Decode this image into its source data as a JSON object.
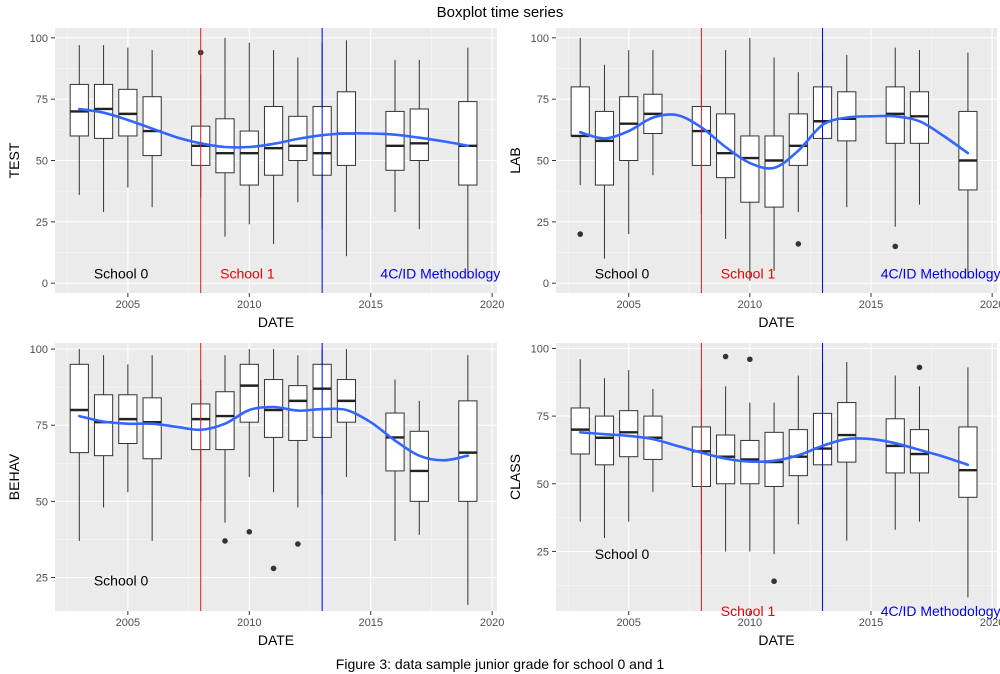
{
  "title": "Boxplot time series",
  "caption": "Figure 3: data sample junior grade for school 0 and 1",
  "chart_data": [
    {
      "type": "box",
      "panel": "TEST",
      "xlabel": "DATE",
      "ylabel": "TEST",
      "xlim": [
        2002,
        2020.2
      ],
      "ylim": [
        -4,
        104
      ],
      "xticks": [
        2005,
        2010,
        2015,
        2020
      ],
      "yticks": [
        0,
        25,
        50,
        75,
        100
      ],
      "vlines": [
        {
          "x": 2008,
          "color": "#e41a1c"
        },
        {
          "x": 2013,
          "color": "#0000dd"
        }
      ],
      "annotations": [
        {
          "text": "School 0",
          "x": 2003.6,
          "y": 4,
          "color": "#000000"
        },
        {
          "text": "School 1",
          "x": 2008.8,
          "y": 4,
          "color": "#ee0000"
        },
        {
          "text": "4C/ID Methodology",
          "x": 2015.4,
          "y": 4,
          "color": "#0000ee"
        }
      ],
      "boxes": [
        {
          "x": 2003,
          "min": 36,
          "q1": 60,
          "median": 70,
          "q3": 81,
          "max": 97
        },
        {
          "x": 2004,
          "min": 29,
          "q1": 59,
          "median": 71,
          "q3": 81,
          "max": 97
        },
        {
          "x": 2005,
          "min": 39,
          "q1": 60,
          "median": 69,
          "q3": 79,
          "max": 96
        },
        {
          "x": 2006,
          "min": 31,
          "q1": 52,
          "median": 62,
          "q3": 76,
          "max": 95
        },
        {
          "x": 2008,
          "min": 35,
          "q1": 48,
          "median": 56,
          "q3": 64,
          "max": 85,
          "outliers": [
            94
          ]
        },
        {
          "x": 2009,
          "min": 19,
          "q1": 45,
          "median": 53,
          "q3": 67,
          "max": 100
        },
        {
          "x": 2010,
          "min": 24,
          "q1": 40,
          "median": 53,
          "q3": 62,
          "max": 98
        },
        {
          "x": 2011,
          "min": 16,
          "q1": 44,
          "median": 55,
          "q3": 72,
          "max": 95
        },
        {
          "x": 2012,
          "min": 33,
          "q1": 50,
          "median": 56,
          "q3": 68,
          "max": 92
        },
        {
          "x": 2013,
          "min": 22,
          "q1": 44,
          "median": 53,
          "q3": 72,
          "max": 98
        },
        {
          "x": 2014,
          "min": 11,
          "q1": 48,
          "median": 61,
          "q3": 78,
          "max": 99
        },
        {
          "x": 2016,
          "min": 29,
          "q1": 46,
          "median": 56,
          "q3": 70,
          "max": 91
        },
        {
          "x": 2017,
          "min": 22,
          "q1": 50,
          "median": 57,
          "q3": 71,
          "max": 91
        },
        {
          "x": 2019,
          "min": 2,
          "q1": 40,
          "median": 56,
          "q3": 74,
          "max": 96
        }
      ],
      "smooth": {
        "color": "#3366ff",
        "x": [
          2003,
          2004,
          2005,
          2006,
          2007,
          2008,
          2009,
          2010,
          2011,
          2012,
          2013,
          2014,
          2015,
          2016,
          2017,
          2018,
          2019
        ],
        "y": [
          71,
          69.5,
          66.5,
          63,
          59.5,
          57,
          55.5,
          55.5,
          56.8,
          58.8,
          60.3,
          61,
          61,
          60.5,
          59.3,
          57.8,
          56
        ]
      }
    },
    {
      "type": "box",
      "panel": "LAB",
      "xlabel": "DATE",
      "ylabel": "LAB",
      "xlim": [
        2002,
        2020.2
      ],
      "ylim": [
        -4,
        104
      ],
      "xticks": [
        2005,
        2010,
        2015,
        2020
      ],
      "yticks": [
        0,
        25,
        50,
        75,
        100
      ],
      "vlines": [
        {
          "x": 2008,
          "color": "#e41a1c"
        },
        {
          "x": 2013,
          "color": "#0000dd"
        }
      ],
      "annotations": [
        {
          "text": "School 0",
          "x": 2003.6,
          "y": 4,
          "color": "#000000"
        },
        {
          "text": "School 1",
          "x": 2008.8,
          "y": 4,
          "color": "#ee0000"
        },
        {
          "text": "4C/ID Methodology",
          "x": 2015.4,
          "y": 4,
          "color": "#0000ee"
        }
      ],
      "boxes": [
        {
          "x": 2003,
          "min": 40,
          "q1": 60,
          "median": 60,
          "q3": 80,
          "max": 100,
          "outliers": [
            20
          ]
        },
        {
          "x": 2004,
          "min": 10,
          "q1": 40,
          "median": 58,
          "q3": 70,
          "max": 89
        },
        {
          "x": 2005,
          "min": 20,
          "q1": 50,
          "median": 65,
          "q3": 76,
          "max": 95
        },
        {
          "x": 2006,
          "min": 44,
          "q1": 61,
          "median": 69,
          "q3": 77,
          "max": 95
        },
        {
          "x": 2008,
          "min": 28,
          "q1": 48,
          "median": 62,
          "q3": 72,
          "max": 85
        },
        {
          "x": 2009,
          "min": 18,
          "q1": 43,
          "median": 53,
          "q3": 69,
          "max": 95
        },
        {
          "x": 2010,
          "min": 1,
          "q1": 33,
          "median": 51,
          "q3": 60,
          "max": 100
        },
        {
          "x": 2011,
          "min": 5,
          "q1": 31,
          "median": 50,
          "q3": 60,
          "max": 92
        },
        {
          "x": 2012,
          "min": 29,
          "q1": 48,
          "median": 56,
          "q3": 69,
          "max": 86,
          "outliers": [
            16
          ]
        },
        {
          "x": 2013,
          "min": 35,
          "q1": 59,
          "median": 66,
          "q3": 80,
          "max": 95
        },
        {
          "x": 2014,
          "min": 31,
          "q1": 58,
          "median": 67,
          "q3": 78,
          "max": 93
        },
        {
          "x": 2016,
          "min": 23,
          "q1": 57,
          "median": 69,
          "q3": 80,
          "max": 96,
          "outliers": [
            15
          ]
        },
        {
          "x": 2017,
          "min": 32,
          "q1": 57,
          "median": 68,
          "q3": 78,
          "max": 95
        },
        {
          "x": 2019,
          "min": 2,
          "q1": 38,
          "median": 50,
          "q3": 70,
          "max": 94
        }
      ],
      "smooth": {
        "color": "#3366ff",
        "x": [
          2003,
          2004,
          2005,
          2006,
          2007,
          2008,
          2009,
          2010,
          2011,
          2012,
          2013,
          2014,
          2015,
          2016,
          2017,
          2018,
          2019
        ],
        "y": [
          61.5,
          59,
          62,
          67.5,
          68.5,
          63.5,
          55.5,
          49,
          47,
          54,
          64.5,
          67.5,
          68,
          68,
          66,
          60,
          53
        ]
      }
    },
    {
      "type": "box",
      "panel": "BEHAV",
      "xlabel": "DATE",
      "ylabel": "BEHAV",
      "xlim": [
        2002,
        2020.2
      ],
      "ylim": [
        14,
        102
      ],
      "xticks": [
        2005,
        2010,
        2015,
        2020
      ],
      "yticks": [
        25,
        50,
        75,
        100
      ],
      "vlines": [
        {
          "x": 2008,
          "color": "#e41a1c"
        },
        {
          "x": 2013,
          "color": "#0000dd"
        }
      ],
      "annotations": [
        {
          "text": "School 0",
          "x": 2003.6,
          "y": 24,
          "color": "#000000"
        }
      ],
      "boxes": [
        {
          "x": 2003,
          "min": 37,
          "q1": 66,
          "median": 80,
          "q3": 95,
          "max": 100
        },
        {
          "x": 2004,
          "min": 48,
          "q1": 65,
          "median": 76,
          "q3": 85,
          "max": 98
        },
        {
          "x": 2005,
          "min": 53,
          "q1": 69,
          "median": 77,
          "q3": 85,
          "max": 95
        },
        {
          "x": 2006,
          "min": 37,
          "q1": 64,
          "median": 76,
          "q3": 84,
          "max": 98
        },
        {
          "x": 2008,
          "min": 50,
          "q1": 67,
          "median": 77,
          "q3": 82,
          "max": 90
        },
        {
          "x": 2009,
          "min": 43,
          "q1": 67,
          "median": 78,
          "q3": 86,
          "max": 98,
          "outliers": [
            37
          ]
        },
        {
          "x": 2010,
          "min": 58,
          "q1": 76,
          "median": 88,
          "q3": 95,
          "max": 100,
          "outliers": [
            40
          ]
        },
        {
          "x": 2011,
          "min": 53,
          "q1": 71,
          "median": 80,
          "q3": 90,
          "max": 100,
          "outliers": [
            28
          ]
        },
        {
          "x": 2012,
          "min": 48,
          "q1": 70,
          "median": 83,
          "q3": 88,
          "max": 98,
          "outliers": [
            36
          ]
        },
        {
          "x": 2013,
          "min": 52,
          "q1": 71,
          "median": 87,
          "q3": 95,
          "max": 100
        },
        {
          "x": 2014,
          "min": 58,
          "q1": 76,
          "median": 83,
          "q3": 90,
          "max": 100
        },
        {
          "x": 2016,
          "min": 37,
          "q1": 60,
          "median": 71,
          "q3": 79,
          "max": 90
        },
        {
          "x": 2017,
          "min": 39,
          "q1": 50,
          "median": 60,
          "q3": 73,
          "max": 83
        },
        {
          "x": 2019,
          "min": 16,
          "q1": 50,
          "median": 66,
          "q3": 83,
          "max": 98
        }
      ],
      "smooth": {
        "color": "#3366ff",
        "x": [
          2003,
          2004,
          2005,
          2006,
          2007,
          2008,
          2009,
          2010,
          2011,
          2012,
          2013,
          2014,
          2015,
          2016,
          2017,
          2018,
          2019
        ],
        "y": [
          78,
          76.2,
          75.5,
          75.5,
          74.5,
          73.5,
          75.5,
          80,
          81,
          79.8,
          80.3,
          80,
          76,
          70,
          65,
          63.5,
          65
        ]
      }
    },
    {
      "type": "box",
      "panel": "CLASS",
      "xlabel": "DATE",
      "ylabel": "CLASS",
      "xlim": [
        2002,
        2020.2
      ],
      "ylim": [
        3,
        102
      ],
      "xticks": [
        2005,
        2010,
        2015,
        2020
      ],
      "yticks": [
        25,
        50,
        75,
        100
      ],
      "vlines": [
        {
          "x": 2008,
          "color": "#e41a1c"
        },
        {
          "x": 2013,
          "color": "#0000dd"
        }
      ],
      "annotations": [
        {
          "text": "School 0",
          "x": 2003.6,
          "y": 24,
          "color": "#000000"
        },
        {
          "text": "School 1",
          "x": 2008.8,
          "y": 3,
          "color": "#ee0000"
        },
        {
          "text": "4C/ID Methodology",
          "x": 2015.4,
          "y": 3,
          "color": "#0000ee"
        }
      ],
      "boxes": [
        {
          "x": 2003,
          "min": 36,
          "q1": 61,
          "median": 70,
          "q3": 78,
          "max": 96
        },
        {
          "x": 2004,
          "min": 30,
          "q1": 57,
          "median": 67,
          "q3": 75,
          "max": 89
        },
        {
          "x": 2005,
          "min": 36,
          "q1": 60,
          "median": 69,
          "q3": 77,
          "max": 92
        },
        {
          "x": 2006,
          "min": 47,
          "q1": 59,
          "median": 67,
          "q3": 75,
          "max": 85
        },
        {
          "x": 2008,
          "min": 24,
          "q1": 49,
          "median": 62,
          "q3": 71,
          "max": 85
        },
        {
          "x": 2009,
          "min": 25,
          "q1": 50,
          "median": 60,
          "q3": 68,
          "max": 86,
          "outliers": [
            97
          ]
        },
        {
          "x": 2010,
          "min": 25,
          "q1": 50,
          "median": 59,
          "q3": 66,
          "max": 80,
          "outliers": [
            96
          ]
        },
        {
          "x": 2011,
          "min": 24,
          "q1": 49,
          "median": 58,
          "q3": 69,
          "max": 80,
          "outliers": [
            14
          ]
        },
        {
          "x": 2012,
          "min": 35,
          "q1": 53,
          "median": 60,
          "q3": 70,
          "max": 90
        },
        {
          "x": 2013,
          "min": 40,
          "q1": 57,
          "median": 63,
          "q3": 76,
          "max": 95
        },
        {
          "x": 2014,
          "min": 29,
          "q1": 58,
          "median": 68,
          "q3": 80,
          "max": 95
        },
        {
          "x": 2016,
          "min": 33,
          "q1": 54,
          "median": 64,
          "q3": 74,
          "max": 90
        },
        {
          "x": 2017,
          "min": 36,
          "q1": 54,
          "median": 61,
          "q3": 70,
          "max": 86,
          "outliers": [
            93
          ]
        },
        {
          "x": 2019,
          "min": 8,
          "q1": 45,
          "median": 55,
          "q3": 71,
          "max": 93
        }
      ],
      "smooth": {
        "color": "#3366ff",
        "x": [
          2003,
          2004,
          2005,
          2006,
          2007,
          2008,
          2009,
          2010,
          2011,
          2012,
          2013,
          2014,
          2015,
          2016,
          2017,
          2018,
          2019
        ],
        "y": [
          69,
          68.3,
          67.7,
          66.5,
          64,
          61.5,
          59.3,
          58.2,
          58.5,
          60.5,
          64,
          66.5,
          66.5,
          65,
          62.5,
          60,
          57
        ]
      }
    }
  ]
}
